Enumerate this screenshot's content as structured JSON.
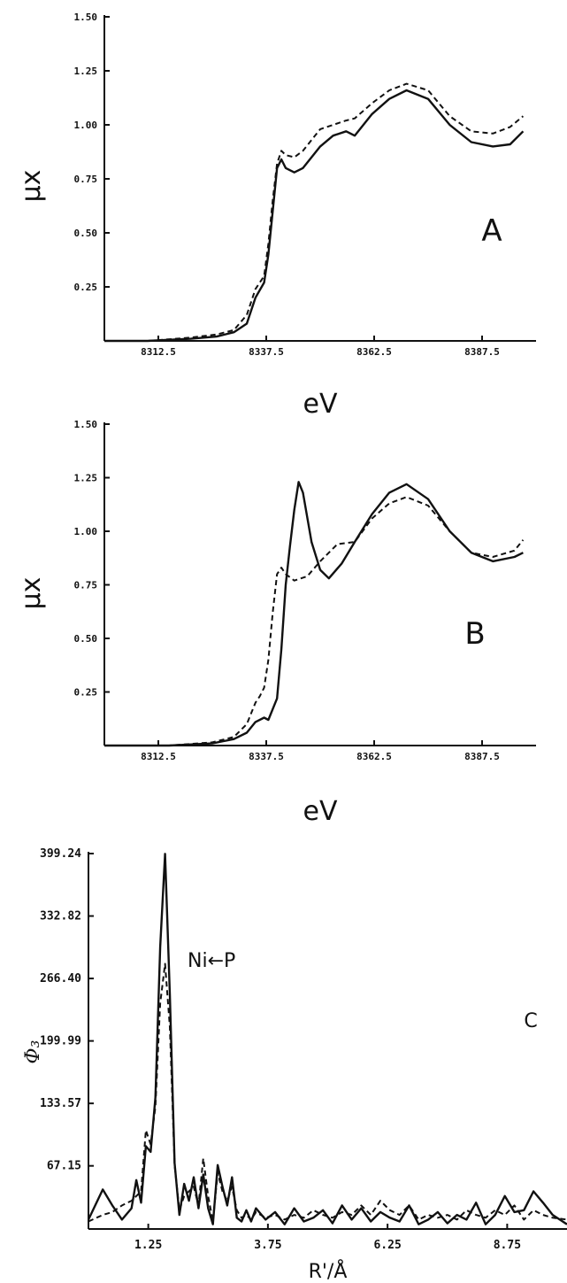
{
  "chart_data": [
    {
      "type": "line",
      "panel_label": "A",
      "xlabel": "eV",
      "ylabel": "μx",
      "xlim": [
        8300,
        8400
      ],
      "ylim": [
        0,
        1.5
      ],
      "xticks": [
        8312.5,
        8337.5,
        8362.5,
        8387.5
      ],
      "xtick_labels": [
        "8312.5",
        "8337.5",
        "8362.5",
        "8387.5"
      ],
      "yticks": [
        0.25,
        0.5,
        0.75,
        1.0,
        1.25,
        1.5
      ],
      "ytick_labels": [
        "0.25",
        "0.50",
        "0.75",
        "1.00",
        "1.25",
        "1.50"
      ],
      "series": [
        {
          "style": "solid",
          "x": [
            8300,
            8310,
            8320,
            8326,
            8330,
            8333,
            8335,
            8337,
            8338,
            8339,
            8340,
            8341,
            8342,
            8344,
            8346,
            8348,
            8350,
            8353,
            8356,
            8358,
            8362,
            8366,
            8370,
            8375,
            8380,
            8385,
            8390,
            8394,
            8397
          ],
          "y": [
            0.0,
            0.0,
            0.01,
            0.02,
            0.04,
            0.08,
            0.2,
            0.27,
            0.4,
            0.6,
            0.8,
            0.84,
            0.8,
            0.78,
            0.8,
            0.85,
            0.9,
            0.95,
            0.97,
            0.95,
            1.05,
            1.12,
            1.16,
            1.12,
            1.0,
            0.92,
            0.9,
            0.91,
            0.97
          ]
        },
        {
          "style": "dashed",
          "x": [
            8300,
            8310,
            8320,
            8326,
            8330,
            8333,
            8335,
            8337,
            8338,
            8339,
            8340,
            8341,
            8342,
            8344,
            8346,
            8348,
            8350,
            8353,
            8356,
            8358,
            8362,
            8366,
            8370,
            8375,
            8380,
            8385,
            8390,
            8394,
            8397
          ],
          "y": [
            0.0,
            0.0,
            0.015,
            0.03,
            0.05,
            0.12,
            0.24,
            0.3,
            0.45,
            0.65,
            0.82,
            0.88,
            0.86,
            0.85,
            0.88,
            0.93,
            0.98,
            1.0,
            1.02,
            1.03,
            1.1,
            1.16,
            1.19,
            1.16,
            1.04,
            0.97,
            0.96,
            0.99,
            1.04
          ]
        }
      ]
    },
    {
      "type": "line",
      "panel_label": "B",
      "xlabel": "eV",
      "ylabel": "μx",
      "xlim": [
        8300,
        8400
      ],
      "ylim": [
        0,
        1.5
      ],
      "xticks": [
        8312.5,
        8337.5,
        8362.5,
        8387.5
      ],
      "xtick_labels": [
        "8312.5",
        "8337.5",
        "8362.5",
        "8387.5"
      ],
      "yticks": [
        0.25,
        0.5,
        0.75,
        1.0,
        1.25,
        1.5
      ],
      "ytick_labels": [
        "0.25",
        "0.50",
        "0.75",
        "1.00",
        "1.25",
        "1.50"
      ],
      "series": [
        {
          "style": "solid",
          "x": [
            8300,
            8315,
            8325,
            8330,
            8333,
            8335,
            8337,
            8338,
            8340,
            8341,
            8342,
            8343,
            8344,
            8345,
            8346,
            8348,
            8350,
            8352,
            8355,
            8358,
            8362,
            8366,
            8370,
            8375,
            8380,
            8385,
            8390,
            8395,
            8397
          ],
          "y": [
            0.0,
            0.0,
            0.01,
            0.03,
            0.06,
            0.11,
            0.13,
            0.12,
            0.22,
            0.45,
            0.75,
            0.93,
            1.1,
            1.23,
            1.18,
            0.95,
            0.82,
            0.78,
            0.85,
            0.95,
            1.08,
            1.18,
            1.22,
            1.15,
            1.0,
            0.9,
            0.86,
            0.88,
            0.9
          ]
        },
        {
          "style": "dashed",
          "x": [
            8300,
            8315,
            8325,
            8330,
            8333,
            8335,
            8336,
            8337,
            8338,
            8339,
            8340,
            8341,
            8342,
            8344,
            8347,
            8350,
            8354,
            8358,
            8362,
            8366,
            8370,
            8375,
            8380,
            8385,
            8390,
            8395,
            8397
          ],
          "y": [
            0.0,
            0.0,
            0.015,
            0.04,
            0.1,
            0.2,
            0.23,
            0.27,
            0.4,
            0.62,
            0.8,
            0.83,
            0.8,
            0.77,
            0.79,
            0.86,
            0.94,
            0.95,
            1.06,
            1.13,
            1.16,
            1.12,
            1.0,
            0.9,
            0.88,
            0.91,
            0.96
          ]
        }
      ]
    },
    {
      "type": "line",
      "panel_label": "C",
      "annotation": "Ni←P",
      "xlabel": "R'/Å",
      "ylabel": "Φ₃",
      "xlim": [
        0,
        10
      ],
      "ylim": [
        0,
        399.24
      ],
      "xticks": [
        1.25,
        3.75,
        6.25,
        8.75
      ],
      "xtick_labels": [
        "1.25",
        "3.75",
        "6.25",
        "8.75"
      ],
      "yticks": [
        67.15,
        133.57,
        199.99,
        266.4,
        332.82,
        399.24
      ],
      "ytick_labels": [
        "67.15",
        "133.57",
        "199.99",
        "266.40",
        "332.82",
        "399.24"
      ],
      "series": [
        {
          "style": "solid",
          "x": [
            0,
            0.3,
            0.5,
            0.7,
            0.9,
            1.0,
            1.1,
            1.2,
            1.3,
            1.4,
            1.5,
            1.6,
            1.7,
            1.8,
            1.9,
            2.0,
            2.1,
            2.2,
            2.3,
            2.4,
            2.5,
            2.6,
            2.7,
            2.8,
            2.9,
            3.0,
            3.1,
            3.2,
            3.3,
            3.4,
            3.5,
            3.7,
            3.9,
            4.1,
            4.3,
            4.5,
            4.7,
            4.9,
            5.1,
            5.3,
            5.5,
            5.7,
            5.9,
            6.1,
            6.3,
            6.5,
            6.7,
            6.9,
            7.1,
            7.3,
            7.5,
            7.7,
            7.9,
            8.1,
            8.3,
            8.5,
            8.7,
            8.9,
            9.1,
            9.3,
            9.5,
            9.7,
            10.0
          ],
          "y": [
            10,
            42,
            25,
            10,
            22,
            52,
            28,
            88,
            82,
            140,
            300,
            399,
            250,
            70,
            15,
            48,
            30,
            55,
            22,
            58,
            22,
            5,
            68,
            45,
            25,
            55,
            12,
            8,
            20,
            8,
            22,
            10,
            18,
            5,
            22,
            8,
            12,
            20,
            6,
            25,
            10,
            22,
            8,
            18,
            12,
            8,
            25,
            5,
            10,
            18,
            6,
            15,
            10,
            28,
            5,
            15,
            35,
            18,
            20,
            40,
            28,
            15,
            5
          ]
        },
        {
          "style": "dashed",
          "x": [
            0,
            0.3,
            0.5,
            0.7,
            0.9,
            1.0,
            1.1,
            1.2,
            1.3,
            1.4,
            1.5,
            1.6,
            1.7,
            1.8,
            1.9,
            2.0,
            2.1,
            2.2,
            2.3,
            2.4,
            2.5,
            2.6,
            2.7,
            2.8,
            2.9,
            3.0,
            3.1,
            3.2,
            3.3,
            3.4,
            3.5,
            3.7,
            3.9,
            4.1,
            4.3,
            4.5,
            4.7,
            4.9,
            5.1,
            5.3,
            5.5,
            5.7,
            5.9,
            6.1,
            6.3,
            6.5,
            6.7,
            6.9,
            7.1,
            7.3,
            7.5,
            7.7,
            7.9,
            8.1,
            8.3,
            8.5,
            8.7,
            8.9,
            9.1,
            9.3,
            9.5,
            9.7,
            10.0
          ],
          "y": [
            8,
            15,
            18,
            25,
            30,
            35,
            40,
            105,
            90,
            130,
            240,
            282,
            215,
            68,
            20,
            35,
            40,
            45,
            25,
            75,
            35,
            8,
            60,
            40,
            30,
            45,
            20,
            12,
            15,
            10,
            18,
            12,
            15,
            10,
            15,
            12,
            20,
            15,
            12,
            18,
            15,
            25,
            15,
            30,
            20,
            15,
            25,
            10,
            15,
            12,
            15,
            10,
            20,
            15,
            12,
            20,
            15,
            25,
            10,
            20,
            15,
            12,
            10
          ]
        }
      ]
    }
  ]
}
